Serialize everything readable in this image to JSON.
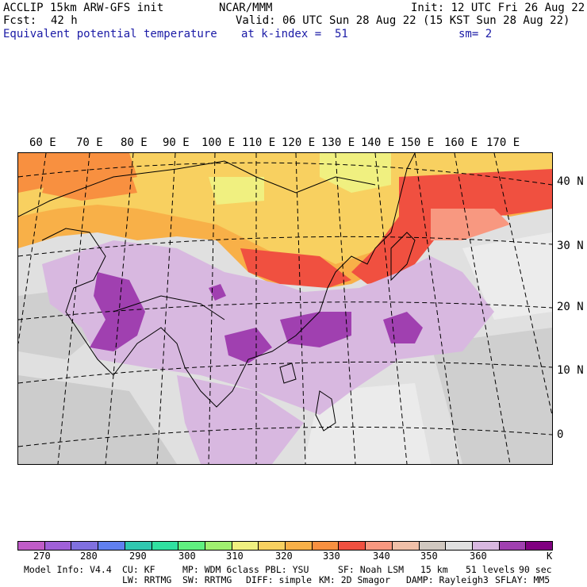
{
  "header": {
    "model": "ACCLIP 15km ARW-GFS init",
    "fcst_label": "Fcst:",
    "fcst_value": "42 h",
    "field": "Equivalent potential temperature",
    "org": "NCAR/MMM",
    "valid": "Valid: 06 UTC Sun 28 Aug 22 (15 KST Sun 28 Aug 22)",
    "level": "at k-index =  51",
    "init": "Init: 12 UTC Fri 26 Aug 22",
    "smooth": "sm= 2"
  },
  "longitudes": [
    "60 E",
    "70 E",
    "80 E",
    "90 E",
    "100 E",
    "110 E",
    "120 E",
    "130 E",
    "140 E",
    "150 E",
    "160 E",
    "170 E"
  ],
  "latitudes": [
    "40 N",
    "30 N",
    "20 N",
    "10 N",
    "0"
  ],
  "colorbar": {
    "colors": [
      "#c05cc8",
      "#a060d8",
      "#8070e0",
      "#6080f0",
      "#30c8b0",
      "#30e0a0",
      "#60f080",
      "#a0f070",
      "#f0f080",
      "#f8d060",
      "#f8b048",
      "#f89040",
      "#f05040",
      "#f89880",
      "#f0c0a8",
      "#d0c8c0",
      "#e0e0e0",
      "#d8b8e0",
      "#a040b0",
      "#800080"
    ],
    "labels": [
      "270",
      "280",
      "290",
      "300",
      "310",
      "320",
      "330",
      "340",
      "350",
      "360",
      "K"
    ]
  },
  "footer": {
    "line1": [
      "Model Info: V4.4",
      "CU: KF",
      "MP: WDM 6class",
      "PBL: YSU",
      "SF: Noah LSM",
      "15 km",
      "51 levels",
      "90 sec"
    ],
    "line2": [
      "LW: RRTMG",
      "SW: RRTMG",
      "DIFF: simple",
      "KM: 2D Smagor",
      "DAMP: Rayleigh3",
      "SFLAY: MM5"
    ]
  }
}
